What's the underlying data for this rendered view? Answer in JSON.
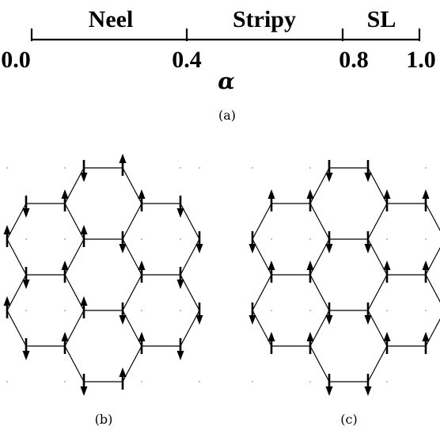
{
  "phase_diagram": {
    "phases": [
      {
        "name": "Neel"
      },
      {
        "name": "Stripy"
      },
      {
        "name": "SL"
      }
    ],
    "ticks": [
      "0.0",
      "0.4",
      "0.8",
      "1.0"
    ],
    "axis_symbol": "α"
  },
  "captions": {
    "a": "(a)",
    "b": "(b)",
    "c": "(c)"
  },
  "lattices": {
    "b": {
      "pattern": "stripy",
      "spin_states": "alternating up/down pairs"
    },
    "c": {
      "pattern": "zigzag-like",
      "spin_states": "alternating up/down pairs"
    }
  }
}
